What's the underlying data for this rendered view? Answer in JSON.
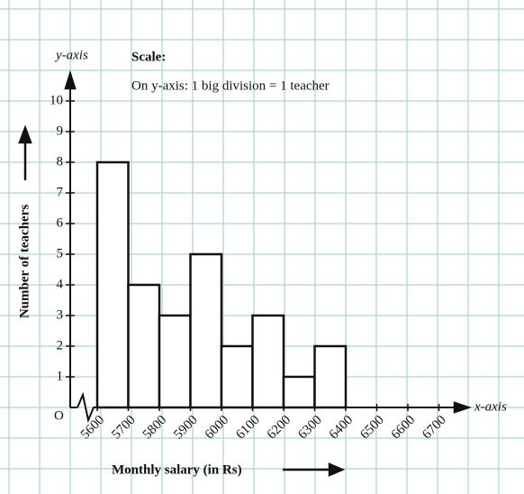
{
  "chart_data": {
    "type": "histogram",
    "axis_x_name": "x-axis",
    "axis_y_name": "y-axis",
    "origin_label": "O",
    "scale_title": "Scale:",
    "scale_text": "On y-axis: 1 big division = 1 teacher",
    "y_label": "Number of teachers",
    "x_label": "Monthly salary (in Rs)",
    "bins": [
      5600,
      5700,
      5800,
      5900,
      6000,
      6100,
      6200,
      6300,
      6400
    ],
    "values": [
      8,
      4,
      3,
      5,
      2,
      3,
      1,
      2
    ],
    "color": "#ffffff",
    "edge_color": "#111111",
    "xlim": [
      5600,
      6700
    ],
    "ylim": [
      0,
      10
    ],
    "xticks": [
      5600,
      5700,
      5800,
      5900,
      6000,
      6100,
      6200,
      6300,
      6400,
      6500,
      6600,
      6700
    ],
    "yticks": [
      1,
      2,
      3,
      4,
      5,
      6,
      7,
      8,
      9,
      10
    ],
    "grid": true
  }
}
